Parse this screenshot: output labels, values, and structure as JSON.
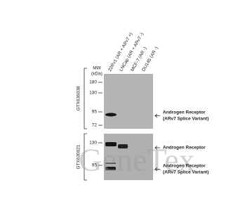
{
  "lanes": [
    "22Rv1 (AR + ARv7 +)",
    "LNCap (AR + ARv7 -)",
    "MCF-7 (AR -)",
    "DU145 (AR -)"
  ],
  "mw_label": [
    "MW",
    "(kDa)"
  ],
  "panels": [
    {
      "antibody": "GTX636038",
      "markers": [
        180,
        130,
        95,
        72
      ],
      "labels": [
        {
          "lines": [
            "Androgen Receptor",
            "(ARv7 Splice Variant)"
          ]
        }
      ]
    },
    {
      "antibody": "GTX630021",
      "markers": [
        130,
        95
      ],
      "labels": [
        {
          "lines": [
            "Androgen Receptor"
          ]
        },
        {
          "lines": [
            "Androgen Receptor",
            "(ARv7 Splice Variant)"
          ]
        }
      ]
    }
  ],
  "watermark": "GeneTex"
}
